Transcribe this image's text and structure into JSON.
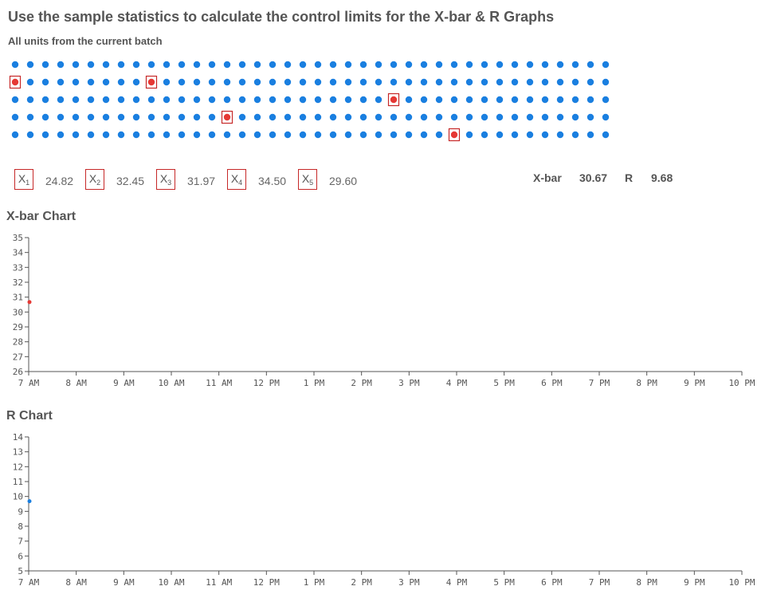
{
  "header": {
    "title": "Use the sample statistics to calculate the control limits for the X-bar & R Graphs",
    "subtitle": "All units from the current batch"
  },
  "units": {
    "rows": 5,
    "cols": 40,
    "dot_color": "#1a7fe0",
    "selected_color": "#e53935",
    "selected": [
      [
        1,
        0
      ],
      [
        1,
        9
      ],
      [
        2,
        25
      ],
      [
        3,
        14
      ],
      [
        4,
        29
      ]
    ]
  },
  "samples": [
    {
      "label": "X",
      "sub": "1",
      "value": "24.82"
    },
    {
      "label": "X",
      "sub": "2",
      "value": "32.45"
    },
    {
      "label": "X",
      "sub": "3",
      "value": "31.97"
    },
    {
      "label": "X",
      "sub": "4",
      "value": "34.50"
    },
    {
      "label": "X",
      "sub": "5",
      "value": "29.60"
    }
  ],
  "stats": {
    "xbar_label": "X-bar",
    "xbar_value": "30.67",
    "r_label": "R",
    "r_value": "9.68"
  },
  "chart_data": [
    {
      "type": "scatter",
      "title": "X-bar Chart",
      "x_ticks": [
        "7 AM",
        "8 AM",
        "9 AM",
        "10 AM",
        "11 AM",
        "12 PM",
        "1 PM",
        "2 PM",
        "3 PM",
        "4 PM",
        "5 PM",
        "6 PM",
        "7 PM",
        "8 PM",
        "9 PM",
        "10 PM"
      ],
      "ylim": [
        26,
        35
      ],
      "y_ticks": [
        26,
        27,
        28,
        29,
        30,
        31,
        32,
        33,
        34,
        35
      ],
      "points": [
        {
          "x": "7 AM",
          "y": 30.67
        }
      ],
      "point_color": "#e53935"
    },
    {
      "type": "scatter",
      "title": "R Chart",
      "x_ticks": [
        "7 AM",
        "8 AM",
        "9 AM",
        "10 AM",
        "11 AM",
        "12 PM",
        "1 PM",
        "2 PM",
        "3 PM",
        "4 PM",
        "5 PM",
        "6 PM",
        "7 PM",
        "8 PM",
        "9 PM",
        "10 PM"
      ],
      "ylim": [
        5,
        14
      ],
      "y_ticks": [
        5,
        6,
        7,
        8,
        9,
        10,
        11,
        12,
        13,
        14
      ],
      "points": [
        {
          "x": "7 AM",
          "y": 9.68
        }
      ],
      "point_color": "#1a7fe0"
    }
  ]
}
